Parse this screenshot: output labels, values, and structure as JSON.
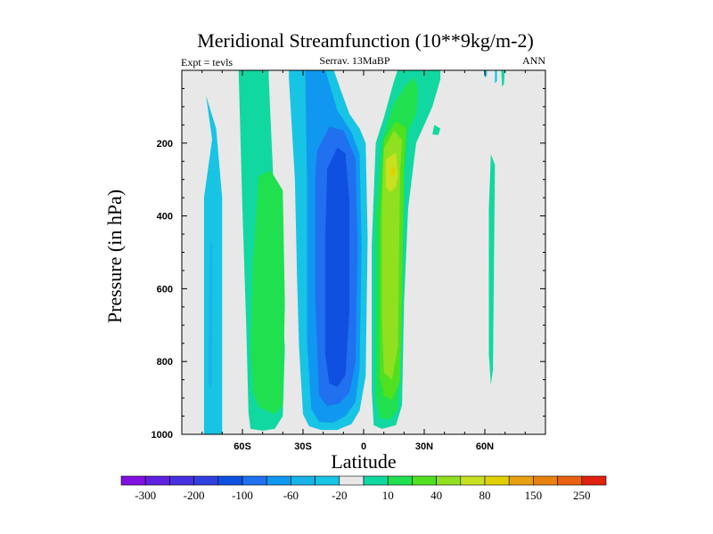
{
  "chart_data": {
    "type": "contour",
    "title": "Meridional Streamfunction (10**9kg/m-2)",
    "experiment_label": "Expt = tevls",
    "center_label": "Serrav.   13MaBP",
    "right_label": "ANN",
    "xlabel": "Latitude",
    "ylabel": "Pressure (in hPa)",
    "xlim": [
      -90,
      90
    ],
    "ylim": [
      0,
      1000
    ],
    "x_ticks": [
      {
        "value": -60,
        "label": "60S"
      },
      {
        "value": -30,
        "label": "30S"
      },
      {
        "value": 0,
        "label": "0"
      },
      {
        "value": 30,
        "label": "30N"
      },
      {
        "value": 60,
        "label": "60N"
      }
    ],
    "y_ticks": [
      {
        "value": 200,
        "label": "200"
      },
      {
        "value": 400,
        "label": "400"
      },
      {
        "value": 600,
        "label": "600"
      },
      {
        "value": 800,
        "label": "800"
      },
      {
        "value": 1000,
        "label": "1000"
      }
    ],
    "contour_levels": [
      -300,
      -250,
      -200,
      -150,
      -100,
      -80,
      -60,
      -40,
      -20,
      -10,
      10,
      20,
      40,
      60,
      80,
      100,
      150,
      200,
      250,
      300
    ],
    "colorbar_labels": [
      "-300",
      "-200",
      "-100",
      "-60",
      "-20",
      "10",
      "40",
      "80",
      "150",
      "250"
    ],
    "colorbar_colors": [
      "#8010e0",
      "#6020e0",
      "#4830e0",
      "#3040e0",
      "#1050e0",
      "#2070f0",
      "#1098f0",
      "#18b4e8",
      "#18c4e4",
      "#e8e8e8",
      "#10d8a0",
      "#20e050",
      "#50e020",
      "#90e020",
      "#c8e020",
      "#e0d000",
      "#e8a010",
      "#e88010",
      "#e86010",
      "#e02010"
    ],
    "background_color": "#e8e8e8",
    "cells": [
      {
        "name": "sh-polar-cell-outer",
        "level": -10,
        "color": "#18c4e4",
        "points": [
          [
            -78,
            70
          ],
          [
            -75,
            190
          ],
          [
            -79,
            350
          ],
          [
            -79,
            1000
          ],
          [
            -78,
            1120
          ],
          [
            -74,
            1130
          ],
          [
            -70,
            1050
          ],
          [
            -70,
            350
          ],
          [
            -73,
            160
          ]
        ]
      },
      {
        "name": "sh-polar-cell-core",
        "level": -20,
        "color": "#18b4e8",
        "points": [
          [
            -76,
            470
          ],
          [
            -77,
            860
          ],
          [
            -76,
            875
          ],
          [
            -75,
            860
          ],
          [
            -75,
            470
          ]
        ]
      },
      {
        "name": "sh-ferrel-cell-outer",
        "level": 10,
        "color": "#10d8a0",
        "points": [
          [
            -66,
            -20
          ],
          [
            -62,
            -20
          ],
          [
            -60,
            380
          ],
          [
            -58,
            720
          ],
          [
            -57,
            940
          ],
          [
            -56,
            985
          ],
          [
            -50,
            990
          ],
          [
            -44,
            985
          ],
          [
            -40,
            950
          ],
          [
            -39,
            760
          ],
          [
            -44,
            390
          ],
          [
            -47,
            20
          ],
          [
            -47,
            -20
          ],
          [
            -66,
            -20
          ]
        ]
      },
      {
        "name": "sh-ferrel-cell-inner",
        "level": 20,
        "color": "#20e050",
        "points": [
          [
            -52,
            290
          ],
          [
            -46,
            275
          ],
          [
            -40,
            330
          ],
          [
            -39,
            640
          ],
          [
            -40,
            920
          ],
          [
            -44,
            945
          ],
          [
            -52,
            925
          ],
          [
            -55,
            880
          ],
          [
            -56,
            760
          ],
          [
            -55,
            540
          ]
        ]
      },
      {
        "name": "sh-hadley-cell-10",
        "level": -10,
        "color": "#18c4e4",
        "points": [
          [
            -37,
            -20
          ],
          [
            -16,
            -20
          ],
          [
            -11,
            60
          ],
          [
            -7,
            120
          ],
          [
            -2,
            160
          ],
          [
            1,
            200
          ],
          [
            2,
            460
          ],
          [
            1,
            840
          ],
          [
            -2,
            935
          ],
          [
            -6,
            972
          ],
          [
            -13,
            988
          ],
          [
            -21,
            988
          ],
          [
            -27,
            978
          ],
          [
            -30,
            945
          ],
          [
            -32,
            760
          ],
          [
            -33,
            560
          ],
          [
            -34,
            300
          ],
          [
            -37,
            20
          ]
        ]
      },
      {
        "name": "sh-hadley-cell-20",
        "level": -20,
        "color": "#1098f0",
        "points": [
          [
            -29,
            -20
          ],
          [
            -20,
            -20
          ],
          [
            -13,
            110
          ],
          [
            -6,
            170
          ],
          [
            -2,
            230
          ],
          [
            -1,
            480
          ],
          [
            -2,
            820
          ],
          [
            -4,
            912
          ],
          [
            -9,
            950
          ],
          [
            -15,
            968
          ],
          [
            -22,
            966
          ],
          [
            -26,
            930
          ],
          [
            -28,
            740
          ],
          [
            -28,
            310
          ]
        ]
      },
      {
        "name": "sh-hadley-cell-40",
        "level": -40,
        "color": "#2070f0",
        "points": [
          [
            -23,
            220
          ],
          [
            -17,
            155
          ],
          [
            -10,
            165
          ],
          [
            -4,
            240
          ],
          [
            -3,
            480
          ],
          [
            -4,
            805
          ],
          [
            -7,
            885
          ],
          [
            -12,
            915
          ],
          [
            -18,
            922
          ],
          [
            -22,
            895
          ],
          [
            -24,
            620
          ],
          [
            -24,
            290
          ]
        ]
      },
      {
        "name": "sh-hadley-cell-60",
        "level": -60,
        "color": "#1050e0",
        "points": [
          [
            -18,
            270
          ],
          [
            -13,
            212
          ],
          [
            -9,
            228
          ],
          [
            -7,
            360
          ],
          [
            -7,
            660
          ],
          [
            -9,
            838
          ],
          [
            -13,
            870
          ],
          [
            -17,
            860
          ],
          [
            -19,
            780
          ],
          [
            -19,
            450
          ]
        ]
      },
      {
        "name": "sh-hadley-cell-80",
        "level": -80,
        "color": "#1050e0",
        "points": [
          [
            -15,
            270
          ],
          [
            -13,
            240
          ],
          [
            -11,
            260
          ],
          [
            -11,
            440
          ],
          [
            -12,
            470
          ],
          [
            -14,
            460
          ]
        ]
      },
      {
        "name": "nh-hadley-cell-10",
        "level": 10,
        "color": "#10d8a0",
        "points": [
          [
            6,
            200
          ],
          [
            10,
            130
          ],
          [
            15,
            30
          ],
          [
            18,
            -20
          ],
          [
            38,
            -20
          ],
          [
            38,
            25
          ],
          [
            34,
            100
          ],
          [
            26,
            200
          ],
          [
            22,
            380
          ],
          [
            20,
            640
          ],
          [
            19,
            920
          ],
          [
            16,
            975
          ],
          [
            9,
            985
          ],
          [
            5,
            975
          ],
          [
            4,
            880
          ],
          [
            4,
            480
          ]
        ]
      },
      {
        "name": "nh-hadley-cell-20",
        "level": 20,
        "color": "#20e050",
        "points": [
          [
            9,
            200
          ],
          [
            11,
            160
          ],
          [
            15,
            90
          ],
          [
            21,
            40
          ],
          [
            25,
            20
          ],
          [
            27,
            50
          ],
          [
            26,
            120
          ],
          [
            22,
            165
          ],
          [
            20,
            300
          ],
          [
            19,
            700
          ],
          [
            17,
            930
          ],
          [
            13,
            960
          ],
          [
            8,
            955
          ],
          [
            6,
            900
          ],
          [
            6,
            400
          ]
        ]
      },
      {
        "name": "nh-hadley-cell-40",
        "level": 40,
        "color": "#50e020",
        "points": [
          [
            10,
            190
          ],
          [
            16,
            140
          ],
          [
            21,
            158
          ],
          [
            20,
            270
          ],
          [
            19,
            620
          ],
          [
            18,
            855
          ],
          [
            14,
            905
          ],
          [
            10,
            895
          ],
          [
            8,
            840
          ],
          [
            8,
            420
          ]
        ]
      },
      {
        "name": "nh-hadley-cell-60",
        "level": 60,
        "color": "#90e020",
        "points": [
          [
            10,
            215
          ],
          [
            15,
            165
          ],
          [
            19,
            192
          ],
          [
            18,
            285
          ],
          [
            17,
            760
          ],
          [
            14,
            850
          ],
          [
            10,
            830
          ],
          [
            9,
            670
          ],
          [
            9,
            380
          ]
        ]
      },
      {
        "name": "nh-hadley-cell-80",
        "level": 80,
        "color": "#c8e020",
        "points": [
          [
            11,
            245
          ],
          [
            16,
            225
          ],
          [
            17,
            285
          ],
          [
            16,
            320
          ],
          [
            13,
            335
          ],
          [
            11,
            320
          ]
        ]
      },
      {
        "name": "nh-hadley-cell-100",
        "level": 100,
        "color": "#e0d000",
        "points": [
          [
            14,
            265
          ],
          [
            16,
            272
          ],
          [
            15,
            290
          ],
          [
            13,
            286
          ]
        ]
      },
      {
        "name": "nh-upper-patch-1",
        "level": 10,
        "color": "#10d8a0",
        "points": [
          [
            26,
            -20
          ],
          [
            31,
            -20
          ],
          [
            30,
            40
          ],
          [
            27,
            55
          ],
          [
            26,
            30
          ]
        ]
      },
      {
        "name": "nh-upper-patch-2",
        "level": 10,
        "color": "#10d8a0",
        "points": [
          [
            35,
            150
          ],
          [
            38,
            160
          ],
          [
            37,
            178
          ],
          [
            34,
            176
          ]
        ]
      },
      {
        "name": "nh-polar-wisp",
        "level": 10,
        "color": "#10d8a0",
        "points": [
          [
            63,
            230
          ],
          [
            65,
            260
          ],
          [
            64.5,
            550
          ],
          [
            64,
            820
          ],
          [
            63,
            865
          ],
          [
            62,
            780
          ],
          [
            62,
            380
          ]
        ]
      },
      {
        "name": "nh-upper-speck-1",
        "level": -10,
        "color": "#18c4e4",
        "points": [
          [
            59,
            -20
          ],
          [
            61,
            -20
          ],
          [
            61,
            15
          ],
          [
            60,
            20
          ]
        ]
      },
      {
        "name": "nh-upper-speck-2",
        "level": -10,
        "color": "#18c4e4",
        "points": [
          [
            65,
            -20
          ],
          [
            66,
            -20
          ],
          [
            66,
            30
          ],
          [
            65,
            35
          ]
        ]
      },
      {
        "name": "nh-upper-speck-3",
        "level": 10,
        "color": "#10d8a0",
        "points": [
          [
            68,
            -20
          ],
          [
            70,
            -20
          ],
          [
            69.5,
            38
          ],
          [
            68.5,
            45
          ]
        ]
      }
    ]
  }
}
